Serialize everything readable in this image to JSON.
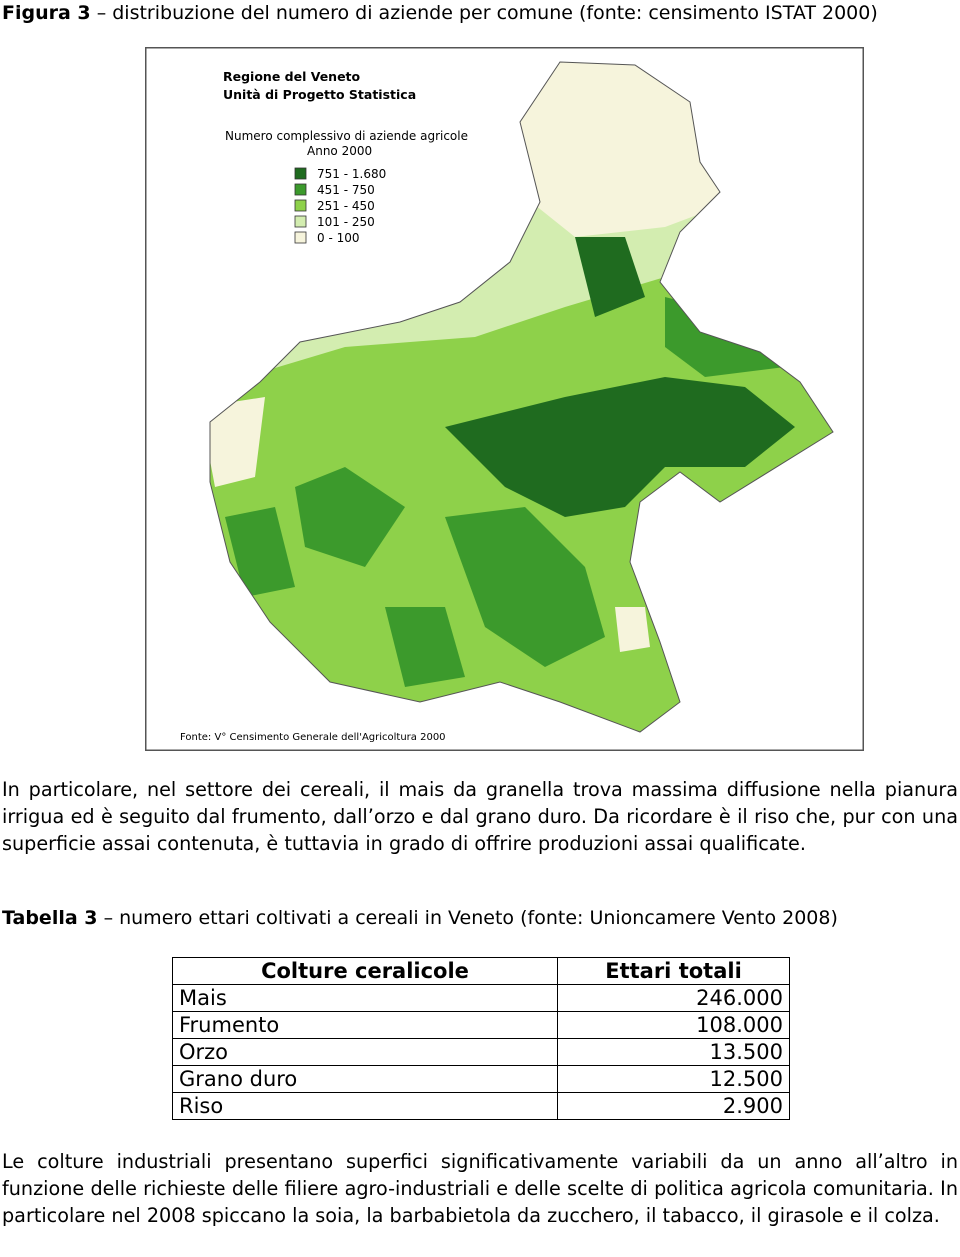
{
  "figure": {
    "label": "Figura 3",
    "caption": "– distribuzione del numero di aziende per comune (fonte: censimento ISTAT 2000)",
    "map": {
      "title_lines": [
        "Regione del Veneto",
        "Unità di Progetto Statistica"
      ],
      "subtitle_lines": [
        "Numero complessivo di aziende agricole",
        "Anno 2000"
      ],
      "legend": [
        {
          "label": "751 - 1.680",
          "color": "#1f6b1f"
        },
        {
          "label": "451 -   750",
          "color": "#3c9a2c"
        },
        {
          "label": "251 -   450",
          "color": "#8ed14a"
        },
        {
          "label": "101 -   250",
          "color": "#d3edb0"
        },
        {
          "label": "0 -   100",
          "color": "#f6f4dc"
        }
      ],
      "source": "Fonte: V° Censimento Generale dell'Agricoltura 2000"
    }
  },
  "paragraphs": [
    "In particolare, nel settore dei cereali, il mais da granella trova massima diffusione nella pianura irrigua ed è seguito dal frumento, dall’orzo e dal grano duro. Da ricordare è il riso che, pur con una superficie assai contenuta, è tuttavia in grado di offrire produzioni assai qualificate."
  ],
  "table": {
    "label": "Tabella 3",
    "caption": "– numero ettari coltivati a cereali in Veneto (fonte: Unioncamere Vento 2008)",
    "header": [
      "Colture ceralicole",
      "Ettari totali"
    ],
    "rows": [
      [
        "Mais",
        "246.000"
      ],
      [
        "Frumento",
        "108.000"
      ],
      [
        "Orzo",
        "13.500"
      ],
      [
        "Grano duro",
        "12.500"
      ],
      [
        "Riso",
        "2.900"
      ]
    ]
  },
  "closing": "Le colture industriali presentano superfici significativamente variabili da un anno all’altro in funzione delle richieste delle filiere agro-industriali e delle scelte di politica agricola comunitaria. In particolare nel 2008 spiccano la soia, la barbabietola da zucchero, il tabacco, il girasole e il colza."
}
